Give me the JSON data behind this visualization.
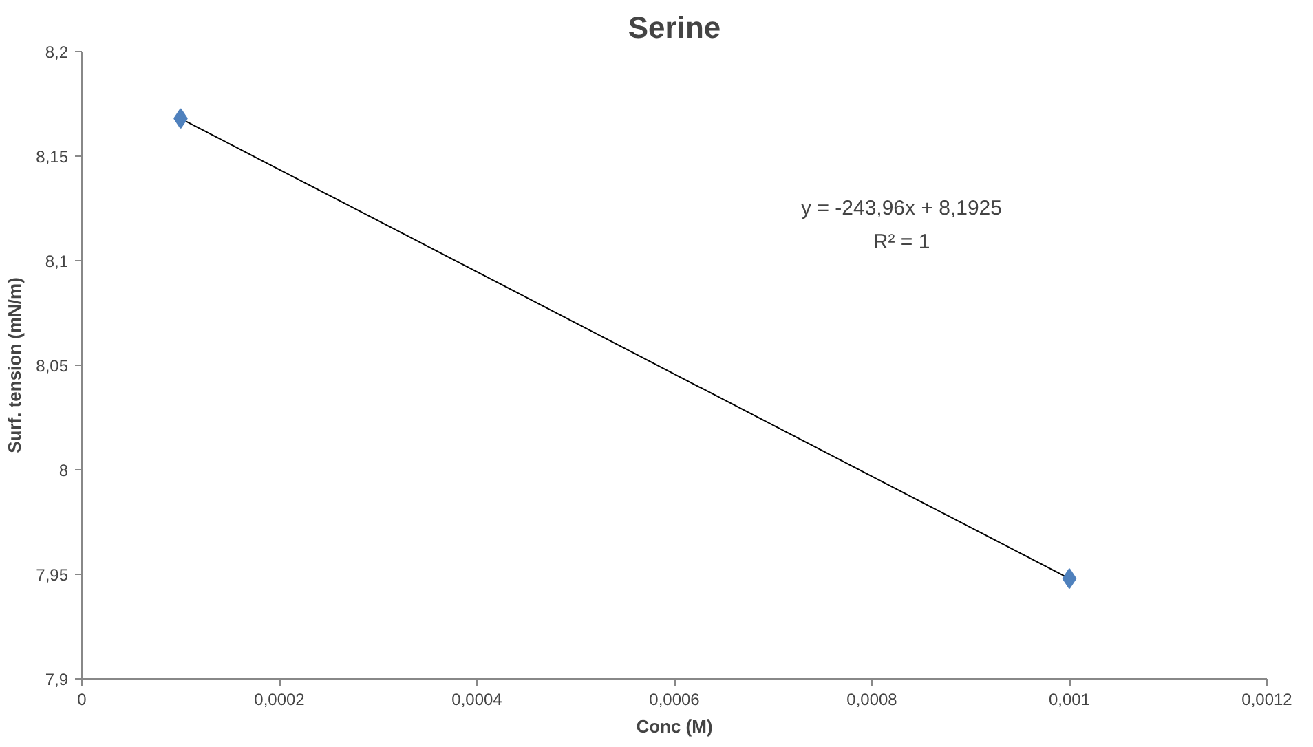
{
  "chart_data": {
    "type": "scatter",
    "title": "Serine",
    "xlabel": "Conc (M)",
    "ylabel": "Surf. tension (mN/m)",
    "x": [
      0.0001,
      0.001
    ],
    "series": [
      {
        "color": "#4f81bd",
        "marker": "diamond",
        "values": [
          8.168,
          7.948
        ]
      },
      {
        "type": "line",
        "color": "#000000",
        "marker": "none",
        "x": [
          0.0001,
          0.001
        ],
        "values": [
          8.168,
          7.948
        ]
      }
    ],
    "xlim": [
      0,
      0.0012
    ],
    "ylim": [
      7.9,
      8.2
    ],
    "xticks": [
      0,
      {
        "value": 0.0002,
        "label": "0,0002"
      },
      {
        "value": 0.0004,
        "label": "0,0004"
      },
      {
        "value": 0.0006,
        "label": "0,0006"
      },
      {
        "value": 0.0008,
        "label": "0,0008"
      },
      {
        "value": 0.001,
        "label": "0,001"
      },
      {
        "value": 0.0012,
        "label": "0,0012"
      }
    ],
    "yticks": [
      {
        "value": 7.9,
        "label": "7,9"
      },
      {
        "value": 7.95,
        "label": "7,95"
      },
      8,
      {
        "value": 8.05,
        "label": "8,05"
      },
      {
        "value": 8.1,
        "label": "8,1"
      },
      {
        "value": 8.15,
        "label": "8,15"
      },
      {
        "value": 8.2,
        "label": "8,2"
      }
    ],
    "annotations": [
      "y = -243,96x + 8,1925",
      "R² = 1"
    ],
    "grid": false
  }
}
